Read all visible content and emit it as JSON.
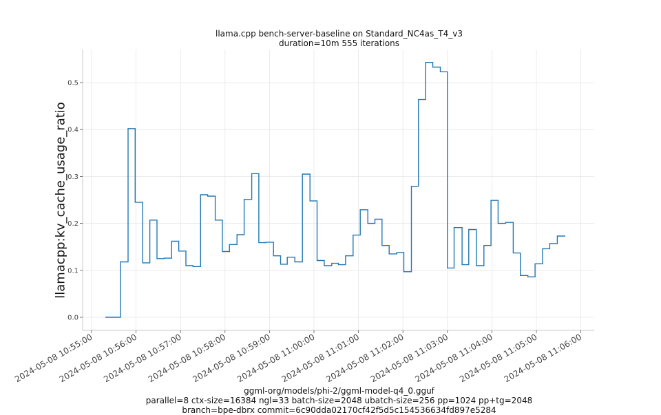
{
  "title": {
    "line1": "llama.cpp bench-server-baseline on Standard_NC4as_T4_v3",
    "line2": "duration=10m 555 iterations"
  },
  "footer": {
    "line1": "ggml-org/models/phi-2/ggml-model-q4_0.gguf",
    "line2": "parallel=8 ctx-size=16384 ngl=33 batch-size=2048 ubatch-size=256 pp=1024 pp+tg=2048",
    "line3": "branch=bpe-dbrx commit=6c90dda02170cf42f5d5c154536634fd897e5284"
  },
  "colors": {
    "line": "#1f77b4",
    "grid": "#e6e6e6",
    "spine": "#c8c8c8",
    "tick_text": "#444444"
  },
  "chart_data": {
    "type": "line",
    "title": "llama.cpp bench-server-baseline on Standard_NC4as_T4_v3\nduration=10m 555 iterations",
    "xlabel": "ggml-org/models/phi-2/ggml-model-q4_0.gguf\nparallel=8 ctx-size=16384 ngl=33 batch-size=2048 ubatch-size=256 pp=1024 pp+tg=2048\nbranch=bpe-dbrx commit=6c90dda02170cf42f5d5c154536634fd897e5284",
    "ylabel": "llamacpp:kv_cache_usage_ratio",
    "x_tick_labels": [
      "2024-05-08 10:55:00",
      "2024-05-08 10:56:00",
      "2024-05-08 10:57:00",
      "2024-05-08 10:58:00",
      "2024-05-08 10:59:00",
      "2024-05-08 11:00:00",
      "2024-05-08 11:01:00",
      "2024-05-08 11:02:00",
      "2024-05-08 11:03:00",
      "2024-05-08 11:04:00",
      "2024-05-08 11:05:00",
      "2024-05-08 11:06:00"
    ],
    "y_ticks": [
      0.0,
      0.1,
      0.2,
      0.3,
      0.4,
      0.5
    ],
    "y_tick_labels": [
      "0.0",
      "0.1",
      "0.2",
      "0.3",
      "0.4",
      "0.5"
    ],
    "ylim": [
      -0.027,
      0.57
    ],
    "xlim_minutes_from_10_55": [
      -0.2,
      11.3
    ],
    "grid": true,
    "legend": null,
    "step": "post",
    "series": [
      {
        "name": "llamacpp:kv_cache_usage_ratio",
        "x_minutes_from_10_55": [
          0.31,
          0.61,
          0.65,
          0.82,
          0.98,
          1.15,
          1.31,
          1.47,
          1.63,
          1.8,
          1.79,
          1.96,
          2.12,
          2.28,
          2.45,
          2.61,
          2.78,
          2.94,
          3.1,
          3.27,
          3.43,
          3.6,
          3.76,
          3.92,
          4.09,
          4.25,
          4.4,
          4.57,
          4.74,
          4.91,
          5.07,
          5.23,
          5.4,
          5.55,
          5.71,
          5.88,
          6.04,
          6.21,
          6.37,
          6.53,
          6.69,
          6.86,
          7.02,
          7.19,
          7.35,
          7.51,
          7.67,
          7.84,
          8.0,
          8.15,
          8.33,
          8.48,
          8.65,
          8.82,
          8.98,
          9.14,
          9.31,
          9.48,
          9.64,
          9.81,
          9.97,
          10.14,
          10.3,
          10.47,
          10.65
        ],
        "values": [
          0.0,
          0.0,
          0.118,
          0.402,
          0.245,
          0.116,
          0.207,
          0.125,
          0.126,
          0.162,
          0.162,
          0.141,
          0.11,
          0.108,
          0.261,
          0.258,
          0.207,
          0.14,
          0.155,
          0.176,
          0.251,
          0.306,
          0.159,
          0.16,
          0.131,
          0.113,
          0.128,
          0.118,
          0.305,
          0.248,
          0.121,
          0.11,
          0.115,
          0.112,
          0.131,
          0.175,
          0.229,
          0.2,
          0.209,
          0.153,
          0.135,
          0.138,
          0.097,
          0.279,
          0.464,
          0.543,
          0.533,
          0.523,
          0.105,
          0.191,
          0.112,
          0.187,
          0.11,
          0.153,
          0.249,
          0.2,
          0.202,
          0.137,
          0.089,
          0.086,
          0.114,
          0.146,
          0.157,
          0.173,
          0.173
        ]
      }
    ]
  }
}
